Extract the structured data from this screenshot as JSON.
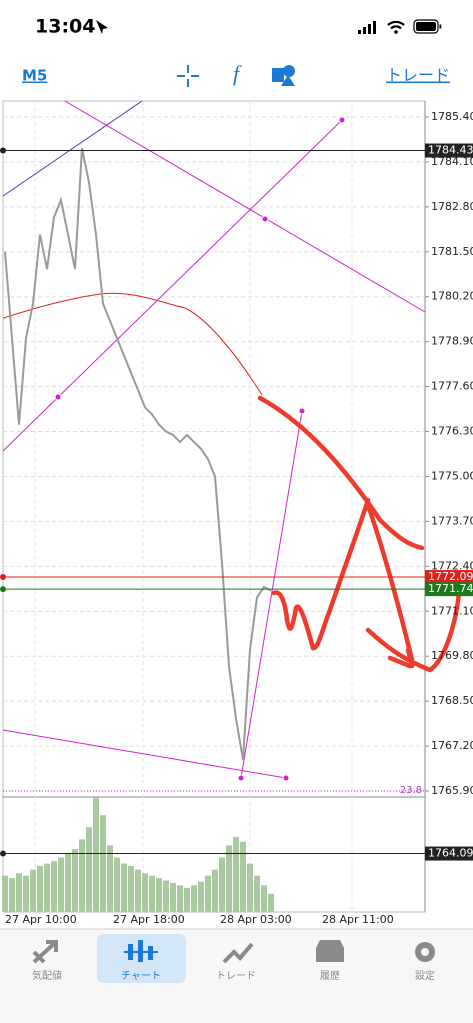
{
  "status_bar": {
    "time": "13:04"
  },
  "toolbar": {
    "timeframe": "M5",
    "trade": "トレード"
  },
  "chart": {
    "yticks": [
      {
        "value": 1785.4,
        "label": "1785.40"
      },
      {
        "value": 1784.1,
        "label": "1784.10"
      },
      {
        "value": 1782.8,
        "label": "1782.80"
      },
      {
        "value": 1781.5,
        "label": "1781.50"
      },
      {
        "value": 1780.2,
        "label": "1780.20"
      },
      {
        "value": 1778.9,
        "label": "1778.90"
      },
      {
        "value": 1777.6,
        "label": "1777.60"
      },
      {
        "value": 1776.3,
        "label": "1776.30"
      },
      {
        "value": 1775.0,
        "label": "1775.00"
      },
      {
        "value": 1773.7,
        "label": "1773.70"
      },
      {
        "value": 1772.4,
        "label": "1772.40"
      },
      {
        "value": 1771.1,
        "label": "1771.10"
      },
      {
        "value": 1769.8,
        "label": "1769.80"
      },
      {
        "value": 1768.5,
        "label": "1768.50"
      },
      {
        "value": 1767.2,
        "label": "1767.20"
      },
      {
        "value": 1765.9,
        "label": "1765.90"
      }
    ],
    "price_lines": [
      {
        "value": 1784.43,
        "color": "#222222"
      },
      {
        "value": 1772.09,
        "color": "#e0201b"
      },
      {
        "value": 1771.74,
        "color": "#1f7a1f"
      },
      {
        "value": 1764.09,
        "color": "#222222"
      }
    ],
    "fib_label": "23.8",
    "xticks": [
      "27 Apr 10:00",
      "27 Apr 18:00",
      "28 Apr 03:00",
      "28 Apr 11:00"
    ],
    "closes": [
      1781.5,
      1779,
      1776.5,
      1779,
      1780,
      1782,
      1781,
      1782.5,
      1783,
      1782,
      1781,
      1784.5,
      1783.5,
      1782,
      1780,
      1779.5,
      1779,
      1778.5,
      1778,
      1777.5,
      1777,
      1776.8,
      1776.5,
      1776.3,
      1776.2,
      1776,
      1776.2,
      1776,
      1775.8,
      1775.5,
      1775,
      1772.5,
      1769.5,
      1768,
      1766.8,
      1770,
      1771.5,
      1771.8,
      1771.7
    ],
    "volumes": [
      30,
      28,
      32,
      30,
      35,
      38,
      40,
      42,
      45,
      48,
      52,
      60,
      70,
      95,
      80,
      55,
      45,
      40,
      38,
      35,
      32,
      30,
      28,
      26,
      24,
      22,
      20,
      22,
      25,
      30,
      35,
      45,
      55,
      62,
      58,
      40,
      30,
      22,
      15
    ]
  },
  "tabs": [
    "気配値",
    "チャート",
    "トレード",
    "履歴",
    "設定"
  ]
}
